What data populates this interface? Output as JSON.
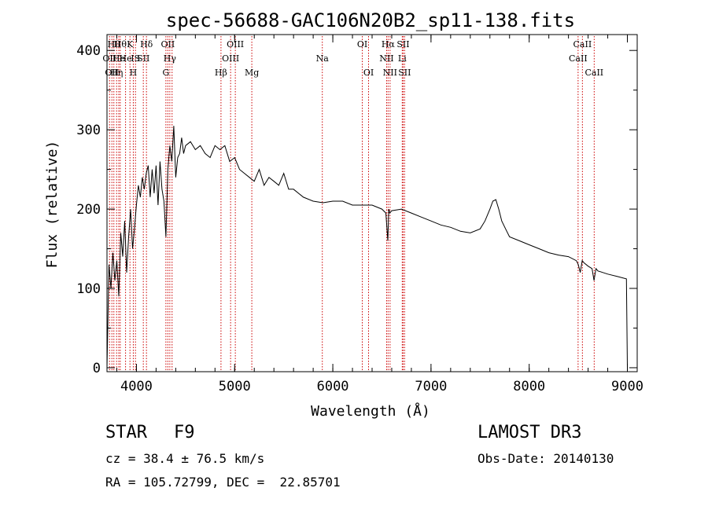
{
  "chart_data": {
    "type": "line",
    "title": "spec-56688-GAC106N20B2_sp11-138.fits",
    "xlabel": "Wavelength (Å)",
    "ylabel": "Flux (relative)",
    "xlim": [
      3700,
      9100
    ],
    "ylim": [
      -5,
      420
    ],
    "xticks": [
      4000,
      5000,
      6000,
      7000,
      8000,
      9000
    ],
    "yticks": [
      0,
      100,
      200,
      300,
      400
    ],
    "series": [
      {
        "name": "flux",
        "x": [
          3700,
          3720,
          3740,
          3760,
          3780,
          3800,
          3820,
          3840,
          3860,
          3880,
          3900,
          3920,
          3940,
          3960,
          3980,
          4000,
          4020,
          4040,
          4060,
          4080,
          4100,
          4120,
          4140,
          4160,
          4180,
          4200,
          4220,
          4240,
          4260,
          4280,
          4300,
          4320,
          4340,
          4360,
          4380,
          4400,
          4420,
          4440,
          4460,
          4480,
          4500,
          4550,
          4600,
          4650,
          4700,
          4750,
          4800,
          4850,
          4900,
          4950,
          5000,
          5050,
          5100,
          5150,
          5200,
          5250,
          5300,
          5350,
          5400,
          5450,
          5500,
          5550,
          5600,
          5700,
          5800,
          5900,
          6000,
          6100,
          6200,
          6300,
          6400,
          6500,
          6540,
          6560,
          6570,
          6580,
          6600,
          6700,
          6800,
          6900,
          7000,
          7100,
          7200,
          7300,
          7400,
          7500,
          7550,
          7600,
          7630,
          7660,
          7690,
          7720,
          7760,
          7800,
          7900,
          8000,
          8100,
          8200,
          8300,
          8400,
          8480,
          8500,
          8520,
          8540,
          8560,
          8600,
          8640,
          8660,
          8680,
          8700,
          8800,
          8900,
          8990,
          9000
        ],
        "y": [
          0,
          130,
          100,
          145,
          110,
          135,
          90,
          170,
          140,
          185,
          120,
          165,
          200,
          150,
          175,
          205,
          230,
          215,
          240,
          225,
          245,
          255,
          215,
          250,
          220,
          255,
          205,
          260,
          225,
          210,
          165,
          250,
          280,
          260,
          305,
          240,
          265,
          270,
          290,
          270,
          280,
          285,
          275,
          280,
          270,
          265,
          280,
          275,
          280,
          260,
          265,
          250,
          245,
          240,
          235,
          250,
          230,
          240,
          235,
          230,
          245,
          225,
          225,
          215,
          210,
          208,
          210,
          210,
          205,
          205,
          205,
          200,
          195,
          160,
          200,
          195,
          198,
          200,
          195,
          190,
          185,
          180,
          177,
          172,
          170,
          175,
          185,
          200,
          210,
          212,
          200,
          185,
          175,
          165,
          160,
          155,
          150,
          145,
          142,
          140,
          135,
          130,
          120,
          135,
          132,
          128,
          125,
          110,
          125,
          122,
          118,
          115,
          112,
          0
        ]
      }
    ],
    "lines": [
      {
        "wl": 3726,
        "row": 1,
        "label": "OII"
      },
      {
        "wl": 3750,
        "row": 2,
        "label": "OII"
      },
      {
        "wl": 3770,
        "row": 0,
        "label": "Hθ"
      },
      {
        "wl": 3798,
        "row": 2,
        "label": "Hη"
      },
      {
        "wl": 3820,
        "row": 1,
        "label": "He"
      },
      {
        "wl": 3835,
        "row": 0,
        "label": "Hθ"
      },
      {
        "wl": 3889,
        "row": 1,
        "label": "He"
      },
      {
        "wl": 3934,
        "row": 0,
        "label": "K"
      },
      {
        "wl": 3968,
        "row": 2,
        "label": "H"
      },
      {
        "wl": 3990,
        "row": 1,
        "label": "IS"
      },
      {
        "wl": 4070,
        "row": 1,
        "label": "SII"
      },
      {
        "wl": 4102,
        "row": 0,
        "label": "Hδ"
      },
      {
        "wl": 4300,
        "row": 2,
        "label": "G"
      },
      {
        "wl": 4320,
        "row": 0,
        "label": "OII"
      },
      {
        "wl": 4340,
        "row": 1,
        "label": "Hγ"
      },
      {
        "wl": 4363,
        "row": 0,
        "label": ""
      },
      {
        "wl": 4861,
        "row": 2,
        "label": "Hβ"
      },
      {
        "wl": 4959,
        "row": 1,
        "label": "OIII"
      },
      {
        "wl": 5007,
        "row": 0,
        "label": "OIII"
      },
      {
        "wl": 5175,
        "row": 2,
        "label": "Mg"
      },
      {
        "wl": 5893,
        "row": 1,
        "label": "Na"
      },
      {
        "wl": 6300,
        "row": 0,
        "label": "OI"
      },
      {
        "wl": 6364,
        "row": 2,
        "label": "OI"
      },
      {
        "wl": 6548,
        "row": 1,
        "label": "NII"
      },
      {
        "wl": 6563,
        "row": 0,
        "label": "Hα"
      },
      {
        "wl": 6583,
        "row": 2,
        "label": "NII"
      },
      {
        "wl": 6707,
        "row": 1,
        "label": "Li"
      },
      {
        "wl": 6716,
        "row": 0,
        "label": "SII"
      },
      {
        "wl": 6731,
        "row": 2,
        "label": "SII"
      },
      {
        "wl": 8498,
        "row": 1,
        "label": "CaII"
      },
      {
        "wl": 8542,
        "row": 0,
        "label": "CaII"
      },
      {
        "wl": 8662,
        "row": 2,
        "label": "CaII"
      }
    ]
  },
  "info": {
    "object_type": "STAR",
    "subclass": "F9",
    "cz": "cz = 38.4 ± 76.5 km/s",
    "radec": "RA = 105.72799, DEC =  22.85701",
    "survey": "LAMOST DR3",
    "obs_date": "Obs-Date: 20140130"
  },
  "colors": {
    "spectrum": "#000000",
    "line_markers": "#cc0000",
    "axes": "#000000"
  }
}
